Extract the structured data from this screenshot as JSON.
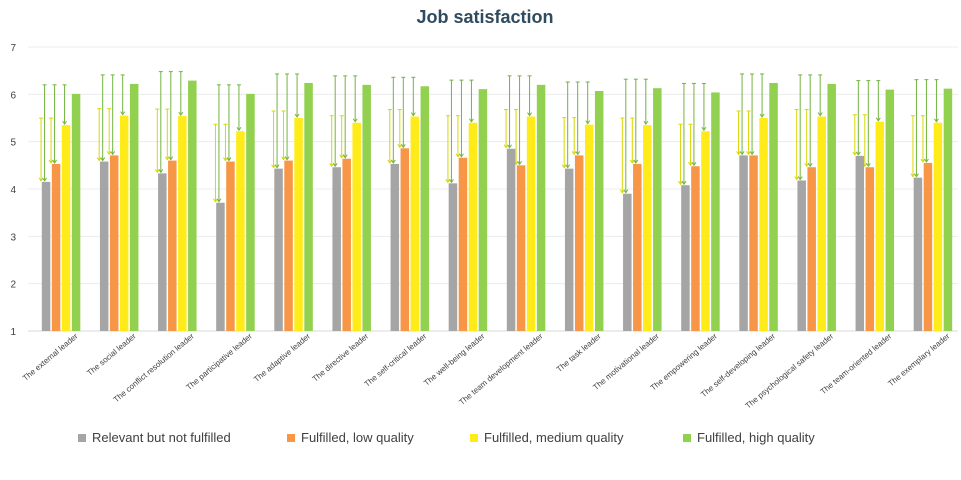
{
  "chart_data": {
    "type": "bar",
    "title": "Job satisfaction",
    "ylim": [
      1,
      7
    ],
    "yticks": [
      1,
      2,
      3,
      4,
      5,
      6,
      7
    ],
    "grid": true,
    "legend_position": "bottom",
    "categories": [
      "The external leader",
      "The social leader",
      "The conflict resolution leader",
      "The participative leader",
      "The adaptive leader",
      "The directive leader",
      "The self-critical leader",
      "The well-being leader",
      "The team development leader",
      "The task leader",
      "The motivational leader",
      "The empowering leader",
      "The self-developing leader",
      "The psychological safety leader",
      "The team-oriented leader",
      "The exemplary leader"
    ],
    "series": [
      {
        "name": "Relevant but not fulfilled",
        "color": "#a5a5a5",
        "values": [
          4.15,
          4.58,
          4.33,
          3.71,
          4.43,
          4.46,
          4.53,
          4.12,
          4.85,
          4.43,
          3.9,
          4.08,
          4.71,
          4.18,
          4.7,
          4.24
        ]
      },
      {
        "name": "Fulfilled, low quality",
        "color": "#f79646",
        "values": [
          4.53,
          4.71,
          4.6,
          4.58,
          4.6,
          4.64,
          4.86,
          4.66,
          4.5,
          4.71,
          4.53,
          4.48,
          4.71,
          4.46,
          4.46,
          4.55
        ]
      },
      {
        "name": "Fulfilled, medium quality",
        "color": "#ffeb1a",
        "values": [
          5.35,
          5.55,
          5.54,
          5.22,
          5.5,
          5.4,
          5.53,
          5.4,
          5.53,
          5.36,
          5.35,
          5.22,
          5.5,
          5.53,
          5.42,
          5.4
        ]
      },
      {
        "name": "Fulfilled, high quality",
        "color": "#92d050",
        "values": [
          6.01,
          6.22,
          6.29,
          6.01,
          6.24,
          6.2,
          6.17,
          6.11,
          6.2,
          6.07,
          6.13,
          6.04,
          6.24,
          6.22,
          6.1,
          6.12
        ]
      }
    ],
    "significance_color_medium": "#d8d600",
    "significance_color_high": "#72b340"
  }
}
